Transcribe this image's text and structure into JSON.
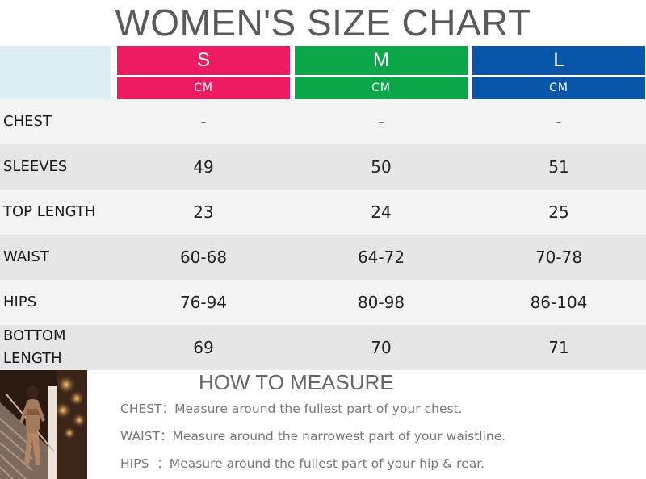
{
  "title": "WOMEN'S SIZE CHART",
  "sizes": [
    {
      "label": "S",
      "unit": "CM",
      "color": "#ec1b62"
    },
    {
      "label": "M",
      "unit": "CM",
      "color": "#0ba74a"
    },
    {
      "label": "L",
      "unit": "CM",
      "color": "#0756aa"
    }
  ],
  "rows": [
    {
      "label": "CHEST",
      "values": [
        "-",
        "-",
        "-"
      ]
    },
    {
      "label": "SLEEVES",
      "values": [
        "49",
        "50",
        "51"
      ]
    },
    {
      "label": "TOP LENGTH",
      "values": [
        "23",
        "24",
        "25"
      ]
    },
    {
      "label": "WAIST",
      "values": [
        "60-68",
        "64-72",
        "70-78"
      ]
    },
    {
      "label": "HIPS",
      "values": [
        "76-94",
        "80-98",
        "86-104"
      ]
    },
    {
      "label": "BOTTOM LENGTH",
      "values": [
        "69",
        "70",
        "71"
      ]
    }
  ],
  "measure": {
    "title": "HOW TO MEASURE",
    "items": [
      {
        "key": "CHEST：",
        "text": "Measure around the fullest part of your chest."
      },
      {
        "key": "WAIST：",
        "text": "Measure around the narrowest part of your waistline."
      },
      {
        "key": "HIPS  ：",
        "text": "Measure around the fullest part of your hip & rear."
      }
    ]
  }
}
